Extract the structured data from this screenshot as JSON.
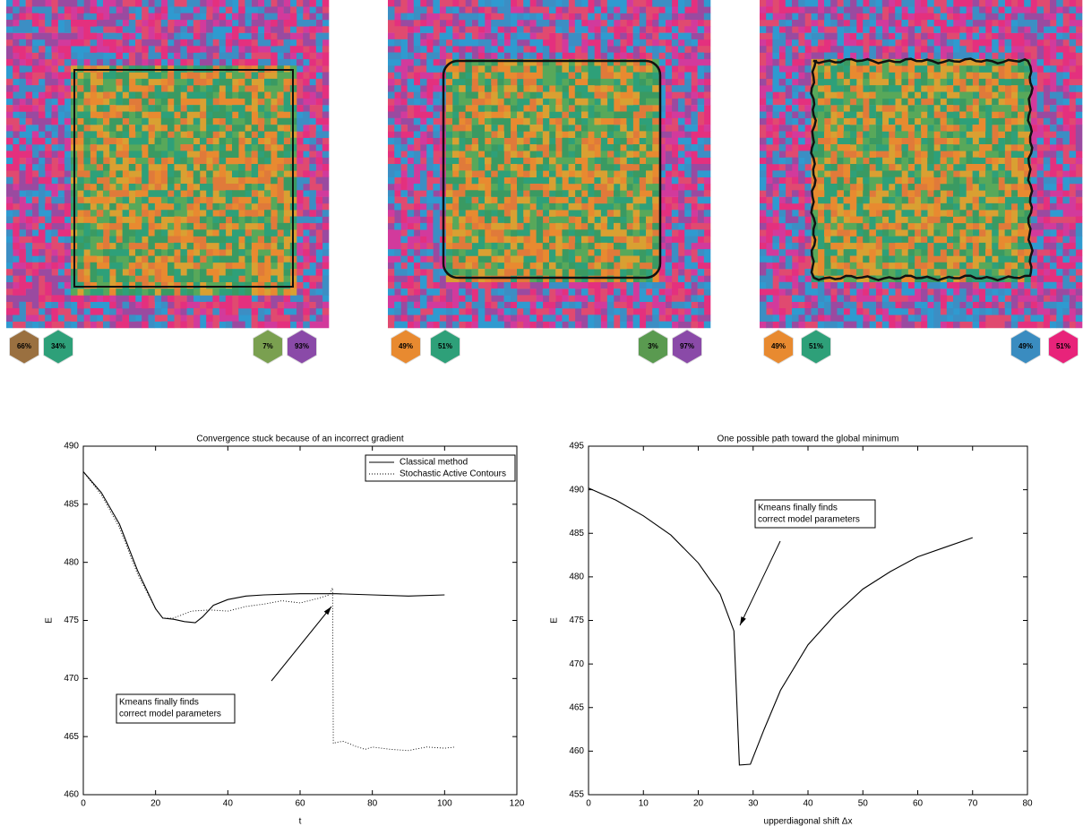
{
  "panels": [
    {
      "badges": [
        "66%",
        "34%",
        "7%",
        "93%"
      ]
    },
    {
      "badges": [
        "49%",
        "51%",
        "3%",
        "97%"
      ]
    },
    {
      "badges": [
        "49%",
        "51%",
        "49%",
        "51%"
      ]
    }
  ],
  "chart_data": [
    {
      "type": "line",
      "title": "Convergence stuck because of an incorrect gradient",
      "xlabel": "t",
      "ylabel": "E",
      "xlim": [
        0,
        120
      ],
      "ylim": [
        460,
        490
      ],
      "xticks": [
        0,
        20,
        40,
        60,
        80,
        100,
        120
      ],
      "yticks": [
        460,
        465,
        470,
        475,
        480,
        485,
        490
      ],
      "legend": "upper right",
      "annotation": [
        "Kmeans finally finds",
        "correct model parameters"
      ],
      "series": [
        {
          "name": "Classical method",
          "color": "#000000",
          "dash": "solid",
          "x": [
            0,
            5,
            10,
            15,
            20,
            22,
            25,
            28,
            31,
            33,
            36,
            40,
            45,
            50,
            60,
            70,
            80,
            90,
            100
          ],
          "values": [
            487.8,
            486,
            483.3,
            479.3,
            476,
            475.2,
            475.1,
            474.9,
            474.8,
            475.3,
            476.3,
            476.8,
            477.1,
            477.2,
            477.3,
            477.3,
            477.2,
            477.1,
            477.2
          ]
        },
        {
          "name": "Stochastic Active Contours",
          "color": "#000000",
          "dash": "dotted",
          "x": [
            0,
            5,
            10,
            15,
            20,
            22,
            25,
            30,
            35,
            40,
            45,
            50,
            55,
            60,
            65,
            68,
            69,
            69.2,
            70,
            72,
            75,
            78,
            80,
            85,
            90,
            95,
            100,
            103
          ],
          "values": [
            487.8,
            485.8,
            483,
            479,
            476,
            475.2,
            475.2,
            475.8,
            475.9,
            475.8,
            476.2,
            476.4,
            476.7,
            476.5,
            476.9,
            477.2,
            477.8,
            464.4,
            464.5,
            464.6,
            464.2,
            463.9,
            464.1,
            463.9,
            463.8,
            464.1,
            464,
            464.1
          ]
        }
      ]
    },
    {
      "type": "line",
      "title": "One possible path toward the global minimum",
      "xlabel": "upperdiagonal shift  Δx",
      "ylabel": "E",
      "xlim": [
        0,
        80
      ],
      "ylim": [
        455,
        495
      ],
      "xticks": [
        0,
        10,
        20,
        30,
        40,
        50,
        60,
        70,
        80
      ],
      "yticks": [
        455,
        460,
        465,
        470,
        475,
        480,
        485,
        490,
        495
      ],
      "annotation": [
        "Kmeans finally finds",
        "correct model parameters"
      ],
      "series": [
        {
          "color": "#000000",
          "dash": "solid",
          "x": [
            0,
            5,
            10,
            15,
            20,
            24,
            26.5,
            27.5,
            29.5,
            32,
            35,
            40,
            45,
            50,
            55,
            60,
            65,
            70
          ],
          "values": [
            490.2,
            488.8,
            487,
            484.8,
            481.6,
            478,
            473.8,
            458.4,
            458.5,
            462.5,
            467,
            472.2,
            475.7,
            478.6,
            480.6,
            482.3,
            483.4,
            484.5
          ]
        }
      ]
    }
  ]
}
